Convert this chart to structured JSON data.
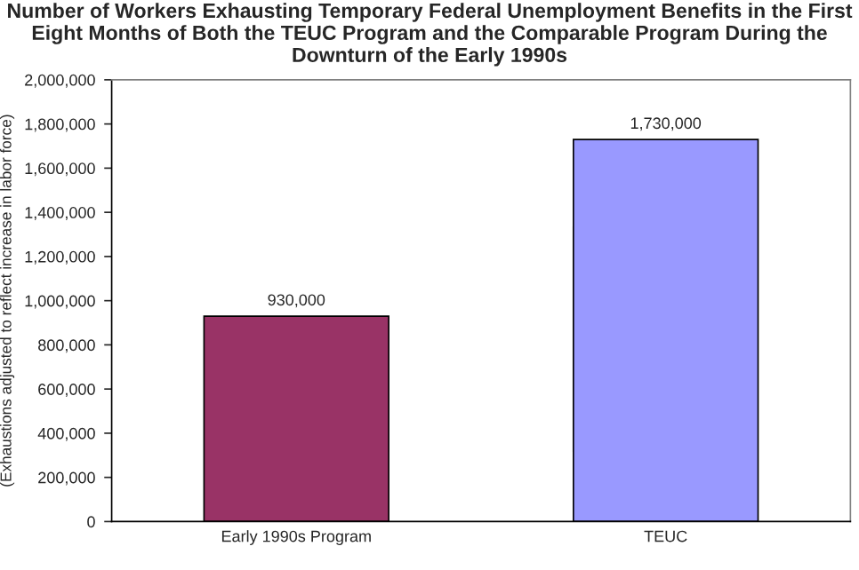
{
  "chart_data": {
    "type": "bar",
    "title": "Number of Workers Exhausting Temporary Federal Unemployment Benefits in the First Eight Months of Both the TEUC Program and the Comparable Program During the Downturn of the Early 1990s",
    "ylabel": "(Exhaustions adjusted to reflect increase in labor force)",
    "categories": [
      "Early 1990s Program",
      "TEUC"
    ],
    "values": [
      930000,
      1730000
    ],
    "colors": [
      "#993366",
      "#9999ff"
    ],
    "value_labels": [
      "930,000",
      "1,730,000"
    ],
    "ylim": [
      0,
      2000000
    ],
    "yticks": [
      {
        "value": 0,
        "label": "0"
      },
      {
        "value": 200000,
        "label": "200,000"
      },
      {
        "value": 400000,
        "label": "400,000"
      },
      {
        "value": 600000,
        "label": "600,000"
      },
      {
        "value": 800000,
        "label": "800,000"
      },
      {
        "value": 1000000,
        "label": "1,000,000"
      },
      {
        "value": 1200000,
        "label": "1,200,000"
      },
      {
        "value": 1400000,
        "label": "1,400,000"
      },
      {
        "value": 1600000,
        "label": "1,600,000"
      },
      {
        "value": 1800000,
        "label": "1,800,000"
      },
      {
        "value": 2000000,
        "label": "2,000,000"
      }
    ],
    "grid": false,
    "legend": false
  }
}
